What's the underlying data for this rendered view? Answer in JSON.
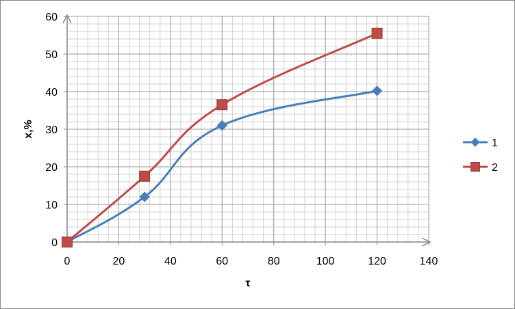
{
  "chart_data": {
    "type": "line",
    "xlabel": "τ",
    "ylabel": "x,%",
    "xlim": [
      0,
      140
    ],
    "ylim": [
      0,
      60
    ],
    "x_ticks": [
      0,
      20,
      40,
      60,
      80,
      100,
      120,
      140
    ],
    "y_ticks": [
      0,
      10,
      20,
      30,
      40,
      50,
      60
    ],
    "grid": true,
    "legend_position": "right",
    "series": [
      {
        "name": "1",
        "color": "#4a7ebb",
        "marker": "diamond",
        "x": [
          0,
          30,
          60,
          120
        ],
        "y": [
          0,
          12,
          31,
          40.2
        ]
      },
      {
        "name": "2",
        "color": "#be4b48",
        "marker": "square",
        "x": [
          0,
          30,
          60,
          120
        ],
        "y": [
          0,
          17.5,
          36.5,
          55.5
        ]
      }
    ]
  }
}
